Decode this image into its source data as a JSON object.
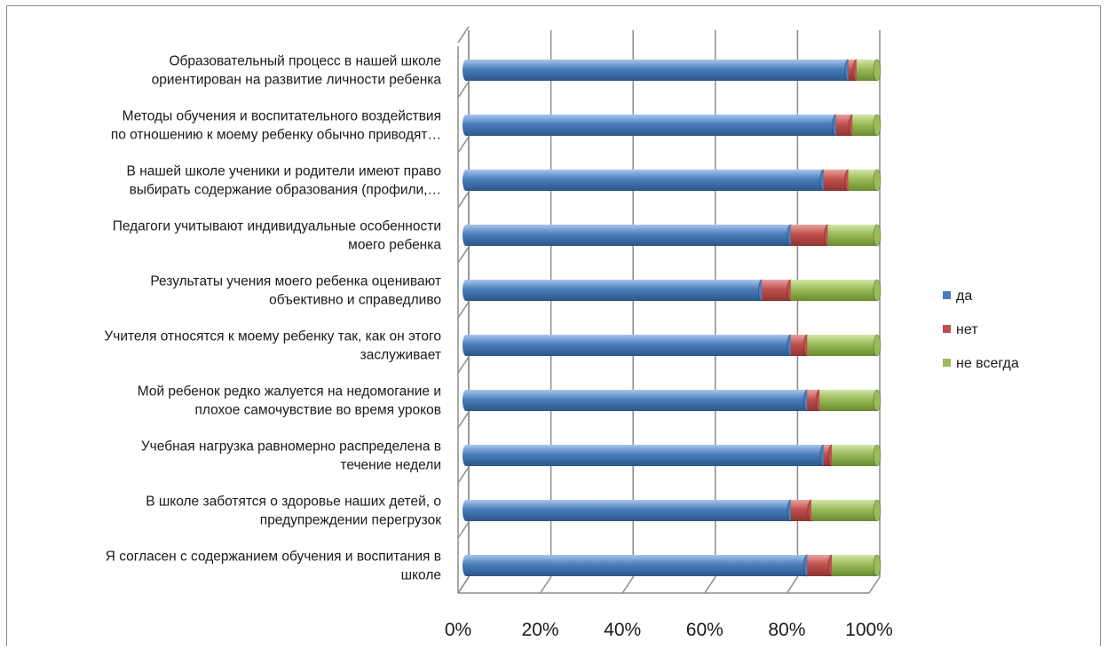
{
  "chart_data": {
    "type": "bar",
    "orientation": "horizontal",
    "stacked": "percent",
    "style": "3d-cylinder",
    "categories": [
      "Образовательный процесс в нашей школе ориентирован на развитие личности ребенка",
      "Методы обучения и воспитательного воздействия по отношению к моему ребенку обычно приводят…",
      "В нашей школе ученики и родители имеют право выбирать содержание образования (профили,…",
      "Педагоги учитывают индивидуальные особенности моего ребенка",
      "Результаты учения моего ребенка оценивают объективно и справедливо",
      "Учителя относятся к моему ребенку так, как он этого заслуживает",
      "Мой ребенок редко жалуется на недомогание и плохое самочувствие во время уроков",
      "Учебная нагрузка равномерно распределена в течение недели",
      "В школе заботятся о здоровье наших детей, о предупреждении перегрузок",
      "Я согласен с содержанием обучения и воспитания в школе"
    ],
    "category_lines": [
      [
        "Образовательный процесс в нашей школе",
        "ориентирован на развитие личности ребенка"
      ],
      [
        "Методы обучения и воспитательного воздействия",
        "по отношению к моему ребенку обычно приводят…"
      ],
      [
        "В нашей школе ученики и родители имеют право",
        "выбирать содержание образования (профили,…"
      ],
      [
        "Педагоги учитывают индивидуальные особенности",
        "моего ребенка"
      ],
      [
        "Результаты учения моего ребенка оценивают",
        "объективно и справедливо"
      ],
      [
        "Учителя относятся к моему ребенку так, как он этого",
        "заслуживает"
      ],
      [
        "Мой ребенок редко жалуется на недомогание и",
        "плохое самочувствие во время уроков"
      ],
      [
        "Учебная нагрузка равномерно распределена в",
        "течение недели"
      ],
      [
        "В школе заботятся о здоровье наших детей, о",
        "предупреждении перегрузок"
      ],
      [
        "Я согласен с содержанием обучения и воспитания в",
        "школе"
      ]
    ],
    "series": [
      {
        "name": "да",
        "color": "#4a7ebb",
        "values": [
          93,
          90,
          87,
          79,
          72,
          79,
          83,
          87,
          79,
          83
        ]
      },
      {
        "name": "нет",
        "color": "#c0504d",
        "values": [
          2,
          4,
          6,
          9,
          7,
          4,
          3,
          2,
          5,
          6
        ]
      },
      {
        "name": "не всегда",
        "color": "#9bbb59",
        "values": [
          5,
          6,
          7,
          12,
          21,
          17,
          14,
          11,
          16,
          11
        ]
      }
    ],
    "xlim": [
      0,
      100
    ],
    "x_ticks": [
      "0%",
      "20%",
      "40%",
      "60%",
      "80%",
      "100%"
    ],
    "grid": true,
    "legend_position": "right"
  }
}
